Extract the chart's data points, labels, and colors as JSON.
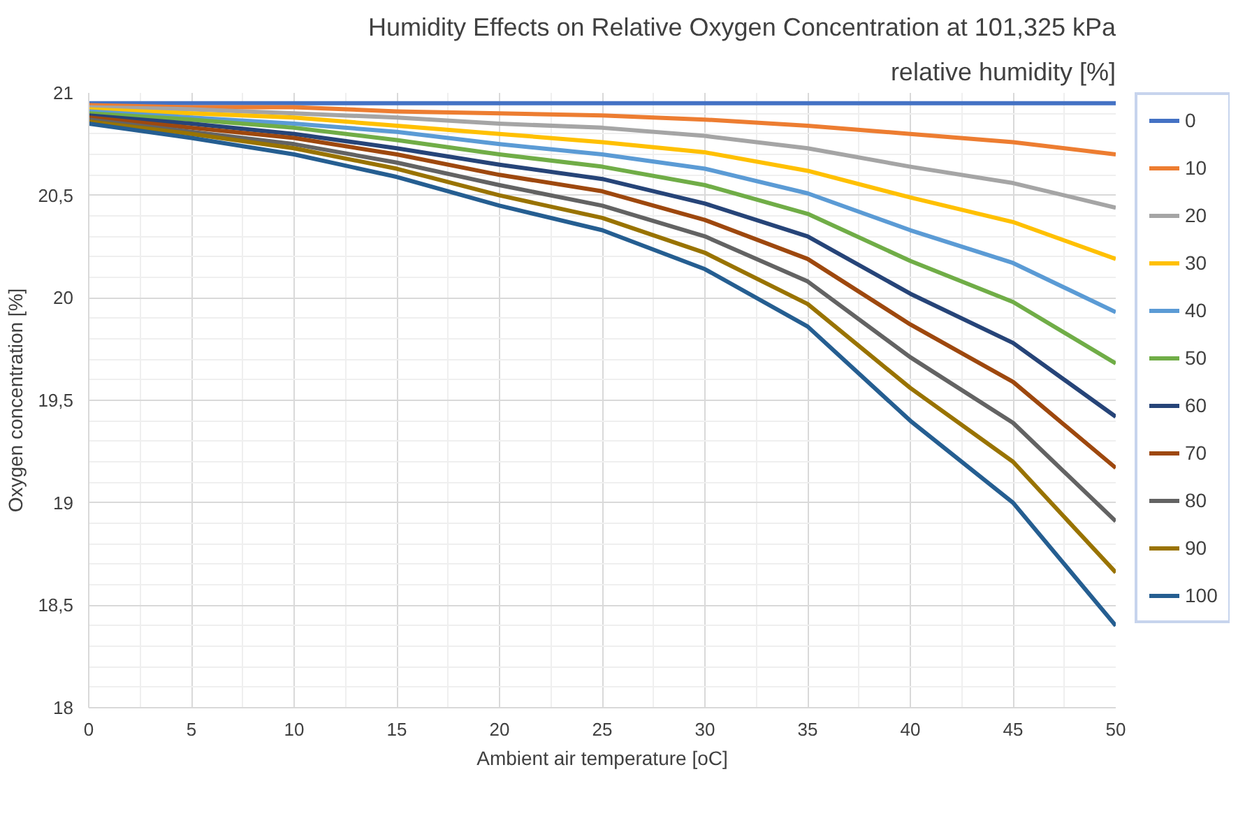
{
  "chart_data": {
    "type": "line",
    "title": "Humidity Effects on Relative Oxygen Concentration at 101,325 kPa",
    "legend_title": "relative humidity [%]",
    "xlabel": "Ambient air temperature [oC]",
    "ylabel": "Oxygen concentration [%]",
    "x": [
      0,
      5,
      10,
      15,
      20,
      25,
      30,
      35,
      40,
      45,
      50
    ],
    "xlim": [
      0,
      50
    ],
    "xticks": [
      0,
      5,
      10,
      15,
      20,
      25,
      30,
      35,
      40,
      45,
      50
    ],
    "ylim": [
      18,
      21
    ],
    "yticks": [
      18,
      {
        "value": 18.5,
        "label": "18,5"
      },
      19,
      {
        "value": 19.5,
        "label": "19,5"
      },
      20,
      {
        "value": 20.5,
        "label": "20,5"
      },
      21
    ],
    "grid": true,
    "legend": "right",
    "marker": "none",
    "line_style": "solid",
    "series": [
      {
        "name": "0",
        "color": "#4472c4",
        "values": [
          20.95,
          20.95,
          20.95,
          20.95,
          20.95,
          20.95,
          20.95,
          20.95,
          20.95,
          20.95,
          20.95
        ]
      },
      {
        "name": "10",
        "color": "#ed7d31",
        "values": [
          20.94,
          20.93,
          20.93,
          20.91,
          20.9,
          20.89,
          20.87,
          20.84,
          20.8,
          20.76,
          20.7
        ]
      },
      {
        "name": "20",
        "color": "#a5a5a5",
        "values": [
          20.93,
          20.92,
          20.9,
          20.88,
          20.85,
          20.83,
          20.79,
          20.73,
          20.64,
          20.56,
          20.44
        ]
      },
      {
        "name": "30",
        "color": "#ffc000",
        "values": [
          20.92,
          20.9,
          20.88,
          20.84,
          20.8,
          20.76,
          20.71,
          20.62,
          20.49,
          20.37,
          20.19
        ]
      },
      {
        "name": "40",
        "color": "#5b9bd5",
        "values": [
          20.91,
          20.88,
          20.85,
          20.81,
          20.75,
          20.7,
          20.63,
          20.51,
          20.33,
          20.17,
          19.93
        ]
      },
      {
        "name": "50",
        "color": "#70ad47",
        "values": [
          20.9,
          20.87,
          20.83,
          20.77,
          20.7,
          20.64,
          20.55,
          20.41,
          20.18,
          19.98,
          19.68
        ]
      },
      {
        "name": "60",
        "color": "#264478",
        "values": [
          20.89,
          20.85,
          20.8,
          20.73,
          20.65,
          20.58,
          20.46,
          20.3,
          20.02,
          19.78,
          19.42
        ]
      },
      {
        "name": "70",
        "color": "#9e480e",
        "values": [
          20.88,
          20.83,
          20.78,
          20.7,
          20.6,
          20.52,
          20.38,
          20.19,
          19.87,
          19.59,
          19.17
        ]
      },
      {
        "name": "80",
        "color": "#636363",
        "values": [
          20.87,
          20.81,
          20.75,
          20.66,
          20.55,
          20.45,
          20.3,
          20.08,
          19.71,
          19.39,
          18.91
        ]
      },
      {
        "name": "90",
        "color": "#997300",
        "values": [
          20.86,
          20.8,
          20.73,
          20.63,
          20.5,
          20.39,
          20.22,
          19.97,
          19.56,
          19.2,
          18.66
        ]
      },
      {
        "name": "100",
        "color": "#255e91",
        "values": [
          20.85,
          20.78,
          20.7,
          20.59,
          20.45,
          20.33,
          20.14,
          19.86,
          19.4,
          19.0,
          18.4
        ]
      }
    ]
  }
}
